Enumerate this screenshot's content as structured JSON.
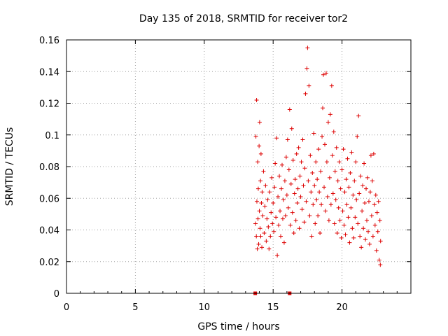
{
  "chart_data": {
    "type": "scatter",
    "title": "Day 135 of 2018, SRMTID for receiver tor2",
    "xlabel": "GPS time / hours",
    "ylabel": "SRMTID / TECUs",
    "xlim": [
      0,
      25
    ],
    "ylim": [
      0,
      0.16
    ],
    "xticks": [
      "0",
      "5",
      "10",
      "15",
      "20"
    ],
    "yticks": [
      "0",
      "0.02",
      "0.04",
      "0.06",
      "0.08",
      "0.1",
      "0.12",
      "0.14",
      "0.16"
    ],
    "grid": true,
    "legend": "none",
    "marker": "plus",
    "color": "#dd0000",
    "data_start_hour": 13.7,
    "data_end_hour": 22.8,
    "gap_markers": [
      {
        "x": 13.7,
        "y": 0
      },
      {
        "x": 16.2,
        "y": 0
      }
    ],
    "series": [
      {
        "points": [
          [
            13.72,
            0.044
          ],
          [
            13.75,
            0.099
          ],
          [
            13.78,
            0.036
          ],
          [
            13.8,
            0.122
          ],
          [
            13.82,
            0.058
          ],
          [
            13.85,
            0.028
          ],
          [
            13.88,
            0.083
          ],
          [
            13.9,
            0.047
          ],
          [
            13.92,
            0.066
          ],
          [
            13.95,
            0.031
          ],
          [
            13.98,
            0.093
          ],
          [
            14.0,
            0.052
          ],
          [
            14.02,
            0.108
          ],
          [
            14.05,
            0.041
          ],
          [
            14.08,
            0.071
          ],
          [
            14.1,
            0.036
          ],
          [
            14.12,
            0.088
          ],
          [
            14.15,
            0.057
          ],
          [
            14.18,
            0.029
          ],
          [
            14.2,
            0.064
          ],
          [
            14.25,
            0.049
          ],
          [
            14.3,
            0.077
          ],
          [
            14.35,
            0.038
          ],
          [
            14.4,
            0.055
          ],
          [
            14.45,
            0.068
          ],
          [
            14.5,
            0.033
          ],
          [
            14.55,
            0.047
          ],
          [
            14.6,
            0.059
          ],
          [
            14.65,
            0.042
          ],
          [
            14.7,
            0.028
          ],
          [
            14.75,
            0.064
          ],
          [
            14.8,
            0.036
          ],
          [
            14.85,
            0.051
          ],
          [
            14.9,
            0.073
          ],
          [
            14.95,
            0.044
          ],
          [
            15.0,
            0.057
          ],
          [
            15.05,
            0.039
          ],
          [
            15.1,
            0.067
          ],
          [
            15.15,
            0.082
          ],
          [
            15.2,
            0.048
          ],
          [
            15.25,
            0.098
          ],
          [
            15.3,
            0.024
          ],
          [
            15.35,
            0.061
          ],
          [
            15.4,
            0.043
          ],
          [
            15.45,
            0.074
          ],
          [
            15.5,
            0.052
          ],
          [
            15.55,
            0.036
          ],
          [
            15.6,
            0.066
          ],
          [
            15.65,
            0.081
          ],
          [
            15.7,
            0.047
          ],
          [
            15.75,
            0.059
          ],
          [
            15.8,
            0.032
          ],
          [
            15.85,
            0.071
          ],
          [
            15.9,
            0.049
          ],
          [
            15.95,
            0.086
          ],
          [
            16.0,
            0.062
          ],
          [
            16.05,
            0.097
          ],
          [
            16.1,
            0.054
          ],
          [
            16.15,
            0.078
          ],
          [
            16.2,
            0.116
          ],
          [
            16.25,
            0.043
          ],
          [
            16.3,
            0.069
          ],
          [
            16.35,
            0.104
          ],
          [
            16.4,
            0.051
          ],
          [
            16.45,
            0.084
          ],
          [
            16.5,
            0.038
          ],
          [
            16.55,
            0.063
          ],
          [
            16.6,
            0.072
          ],
          [
            16.65,
            0.046
          ],
          [
            16.7,
            0.088
          ],
          [
            16.75,
            0.057
          ],
          [
            16.8,
            0.066
          ],
          [
            16.85,
            0.092
          ],
          [
            16.9,
            0.041
          ],
          [
            16.95,
            0.074
          ],
          [
            17.0,
            0.061
          ],
          [
            17.05,
            0.083
          ],
          [
            17.1,
            0.053
          ],
          [
            17.15,
            0.097
          ],
          [
            17.2,
            0.068
          ],
          [
            17.25,
            0.045
          ],
          [
            17.3,
            0.079
          ],
          [
            17.35,
            0.126
          ],
          [
            17.4,
            0.058
          ],
          [
            17.45,
            0.142
          ],
          [
            17.5,
            0.155
          ],
          [
            17.55,
            0.071
          ],
          [
            17.6,
            0.131
          ],
          [
            17.65,
            0.049
          ],
          [
            17.7,
            0.087
          ],
          [
            17.75,
            0.064
          ],
          [
            17.8,
            0.036
          ],
          [
            17.85,
            0.076
          ],
          [
            17.9,
            0.056
          ],
          [
            17.95,
            0.101
          ],
          [
            18.0,
            0.068
          ],
          [
            18.05,
            0.044
          ],
          [
            18.1,
            0.083
          ],
          [
            18.15,
            0.059
          ],
          [
            18.2,
            0.072
          ],
          [
            18.25,
            0.049
          ],
          [
            18.3,
            0.091
          ],
          [
            18.35,
            0.064
          ],
          [
            18.4,
            0.038
          ],
          [
            18.45,
            0.077
          ],
          [
            18.5,
            0.056
          ],
          [
            18.55,
            0.099
          ],
          [
            18.6,
            0.117
          ],
          [
            18.65,
            0.138
          ],
          [
            18.7,
            0.067
          ],
          [
            18.75,
            0.094
          ],
          [
            18.8,
            0.052
          ],
          [
            18.85,
            0.139
          ],
          [
            18.9,
            0.083
          ],
          [
            18.95,
            0.061
          ],
          [
            19.0,
            0.108
          ],
          [
            19.05,
            0.046
          ],
          [
            19.1,
            0.073
          ],
          [
            19.15,
            0.113
          ],
          [
            19.2,
            0.056
          ],
          [
            19.25,
            0.131
          ],
          [
            19.3,
            0.087
          ],
          [
            19.35,
            0.063
          ],
          [
            19.4,
            0.102
          ],
          [
            19.45,
            0.044
          ],
          [
            19.5,
            0.077
          ],
          [
            19.55,
            0.059
          ],
          [
            19.6,
            0.092
          ],
          [
            19.65,
            0.038
          ],
          [
            19.7,
            0.071
          ],
          [
            19.75,
            0.054
          ],
          [
            19.8,
            0.083
          ],
          [
            19.85,
            0.046
          ],
          [
            19.9,
            0.066
          ],
          [
            19.95,
            0.035
          ],
          [
            20.0,
            0.078
          ],
          [
            20.05,
            0.052
          ],
          [
            20.1,
            0.091
          ],
          [
            20.15,
            0.043
          ],
          [
            20.2,
            0.064
          ],
          [
            20.25,
            0.037
          ],
          [
            20.3,
            0.072
          ],
          [
            20.35,
            0.056
          ],
          [
            20.4,
            0.085
          ],
          [
            20.45,
            0.048
          ],
          [
            20.5,
            0.067
          ],
          [
            20.55,
            0.032
          ],
          [
            20.6,
            0.076
          ],
          [
            20.65,
            0.054
          ],
          [
            20.7,
            0.089
          ],
          [
            20.75,
            0.041
          ],
          [
            20.8,
            0.062
          ],
          [
            20.85,
            0.035
          ],
          [
            20.9,
            0.071
          ],
          [
            20.95,
            0.048
          ],
          [
            21.0,
            0.083
          ],
          [
            21.05,
            0.059
          ],
          [
            21.1,
            0.099
          ],
          [
            21.15,
            0.044
          ],
          [
            21.2,
            0.112
          ],
          [
            21.25,
            0.063
          ],
          [
            21.3,
            0.036
          ],
          [
            21.35,
            0.074
          ],
          [
            21.4,
            0.029
          ],
          [
            21.45,
            0.052
          ],
          [
            21.5,
            0.068
          ],
          [
            21.55,
            0.041
          ],
          [
            21.6,
            0.082
          ],
          [
            21.65,
            0.057
          ],
          [
            21.7,
            0.034
          ],
          [
            21.75,
            0.066
          ],
          [
            21.8,
            0.046
          ],
          [
            21.85,
            0.073
          ],
          [
            21.9,
            0.039
          ],
          [
            21.95,
            0.058
          ],
          [
            22.0,
            0.031
          ],
          [
            22.05,
            0.064
          ],
          [
            22.1,
            0.087
          ],
          [
            22.15,
            0.049
          ],
          [
            22.2,
            0.071
          ],
          [
            22.25,
            0.036
          ],
          [
            22.3,
            0.088
          ],
          [
            22.35,
            0.056
          ],
          [
            22.4,
            0.043
          ],
          [
            22.45,
            0.062
          ],
          [
            22.5,
            0.027
          ],
          [
            22.55,
            0.051
          ],
          [
            22.6,
            0.039
          ],
          [
            22.65,
            0.058
          ],
          [
            22.7,
            0.021
          ],
          [
            22.75,
            0.046
          ],
          [
            22.78,
            0.018
          ],
          [
            22.8,
            0.033
          ]
        ]
      }
    ]
  }
}
